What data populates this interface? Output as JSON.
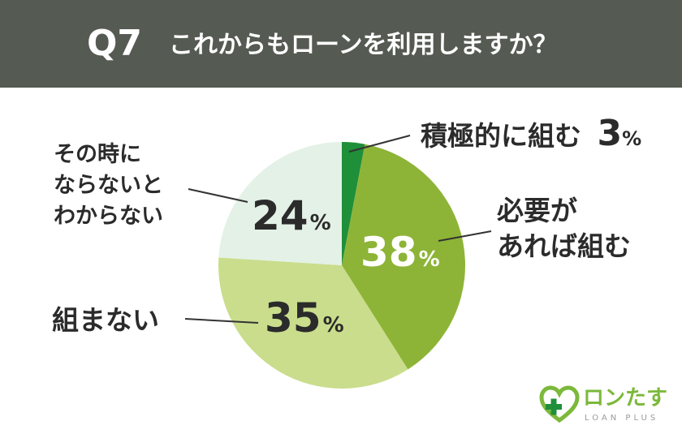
{
  "header": {
    "question_number": "Q7",
    "question": "これからもローンを利用しますか？"
  },
  "chart_data": {
    "type": "pie",
    "title": "これからもローンを利用しますか？",
    "categories": [
      "積極的に組む",
      "必要があれば組む",
      "組まない",
      "その時にならないとわからない"
    ],
    "values": [
      3,
      38,
      35,
      24
    ],
    "unit": "%",
    "colors": [
      "#1f8f3a",
      "#8db437",
      "#c9dd8c",
      "#e3f1e6"
    ],
    "value_label_colors": [
      "#2b2b2b",
      "#ffffff",
      "#2b2b2b",
      "#2b2b2b"
    ]
  },
  "labels": {
    "slice0": {
      "name": "積極的に組む",
      "value": "3",
      "pct": "%"
    },
    "slice1": {
      "name_line1": "必要が",
      "name_line2": "あれば組む",
      "value": "38",
      "pct": "%"
    },
    "slice2": {
      "name": "組まない",
      "value": "35",
      "pct": "%"
    },
    "slice3": {
      "name_line1": "その時に",
      "name_line2": "ならないと",
      "name_line3": "わからない",
      "value": "24",
      "pct": "%"
    }
  },
  "logo": {
    "name": "ロンたす",
    "sub": "LOAN PLUS",
    "color": "#7cb83a",
    "icon": "heart-plus-icon"
  }
}
